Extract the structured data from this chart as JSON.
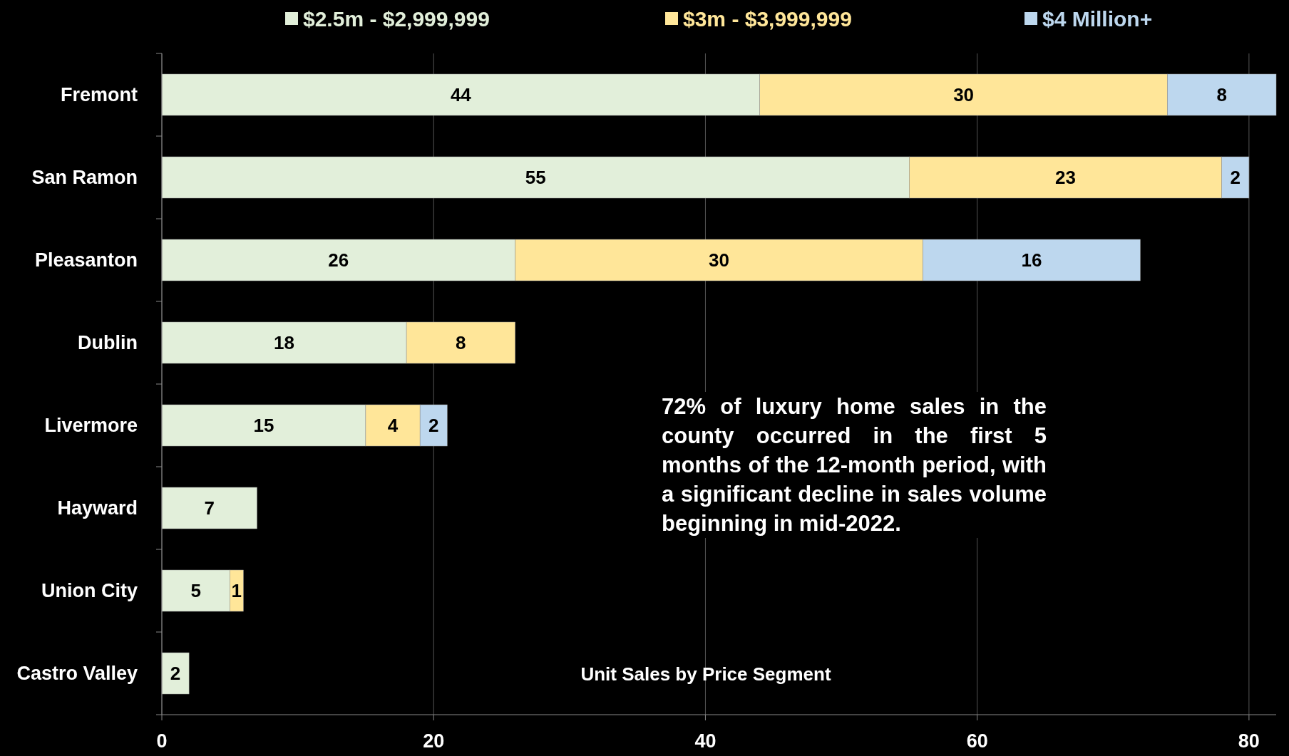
{
  "chart_data": {
    "type": "bar",
    "orientation": "horizontal",
    "stacked": true,
    "categories": [
      "Fremont",
      "San Ramon",
      "Pleasanton",
      "Dublin",
      "Livermore",
      "Hayward",
      "Union City",
      "Castro Valley"
    ],
    "series": [
      {
        "name": "$2.5m - $2,999,999",
        "color": "#e2efda",
        "values": [
          44,
          55,
          26,
          18,
          15,
          7,
          5,
          2
        ]
      },
      {
        "name": "$3m - $3,999,999",
        "color": "#ffe699",
        "values": [
          30,
          23,
          30,
          8,
          4,
          null,
          1,
          null
        ]
      },
      {
        "name": "$4 Million+",
        "color": "#bdd7ee",
        "values": [
          8,
          2,
          16,
          null,
          2,
          null,
          null,
          null
        ]
      }
    ],
    "xlim": [
      0,
      82
    ],
    "xticks": [
      0,
      20,
      40,
      60,
      80
    ],
    "grid": "x",
    "legend": "top",
    "data_labels": true,
    "annotations": [
      "72% of luxury home sales in the county occurred in the first 5 months of the 12-month period, with a significant decline in sales volume beginning in mid-2022.",
      "Unit Sales by Price Segment"
    ]
  }
}
